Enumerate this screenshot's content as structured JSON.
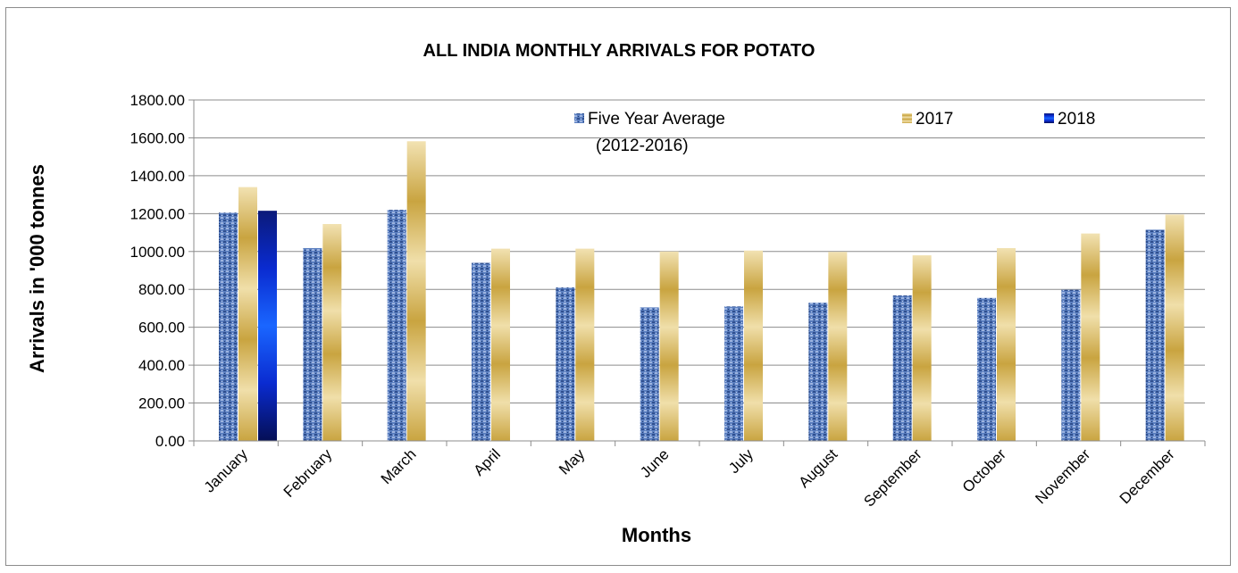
{
  "chart_data": {
    "type": "bar",
    "title": "ALL INDIA MONTHLY ARRIVALS FOR POTATO",
    "xlabel": "Months",
    "ylabel": "Arrivals in '000 tonnes",
    "ylim": [
      0,
      1800
    ],
    "ytick_step": 200,
    "ytick_labels": [
      "0.00",
      "200.00",
      "400.00",
      "600.00",
      "800.00",
      "1000.00",
      "1200.00",
      "1400.00",
      "1600.00",
      "1800.00"
    ],
    "grid": true,
    "legend_position": "top-right",
    "categories": [
      "January",
      "February",
      "March",
      "April",
      "May",
      "June",
      "July",
      "August",
      "September",
      "October",
      "November",
      "December"
    ],
    "series": [
      {
        "name": "Five Year Average",
        "name_line2": "(2012-2016)",
        "color": "#4f73b5",
        "values": [
          1205,
          1018,
          1220,
          940,
          810,
          705,
          710,
          730,
          768,
          755,
          798,
          1115
        ]
      },
      {
        "name": "2017",
        "color": "#d4b455",
        "values": [
          1340,
          1145,
          1582,
          1015,
          1015,
          1000,
          1005,
          998,
          980,
          1018,
          1095,
          1195
        ]
      },
      {
        "name": "2018",
        "color": "#0a3ad8",
        "values": [
          1215,
          null,
          null,
          null,
          null,
          null,
          null,
          null,
          null,
          null,
          null,
          null
        ]
      }
    ]
  }
}
